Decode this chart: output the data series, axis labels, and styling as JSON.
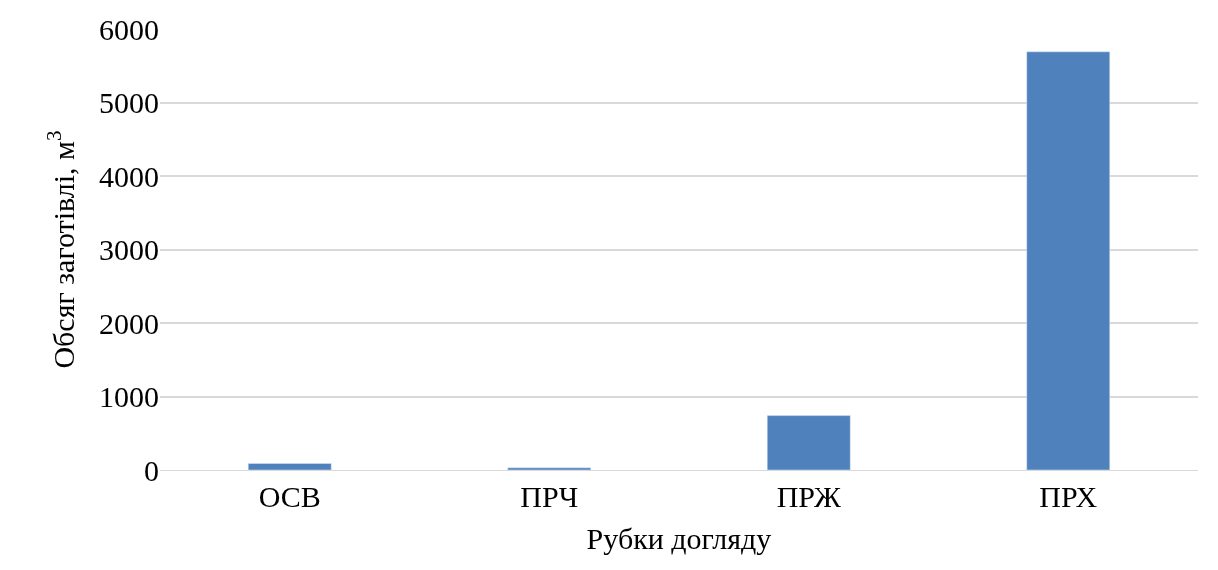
{
  "chart_data": {
    "type": "bar",
    "categories": [
      "ОСВ",
      "ПРЧ",
      "ПРЖ",
      "ПРХ"
    ],
    "values": [
      90,
      30,
      740,
      5690
    ],
    "color": "#4f81bd",
    "xlabel": "Рубки догляду",
    "ylabel": "Обсяг заготівлі, м$^{3}$",
    "ylim": [
      0,
      6000
    ],
    "yticks": [
      0,
      1000,
      2000,
      3000,
      4000,
      5000,
      6000
    ],
    "grid": "y",
    "legend": false
  }
}
